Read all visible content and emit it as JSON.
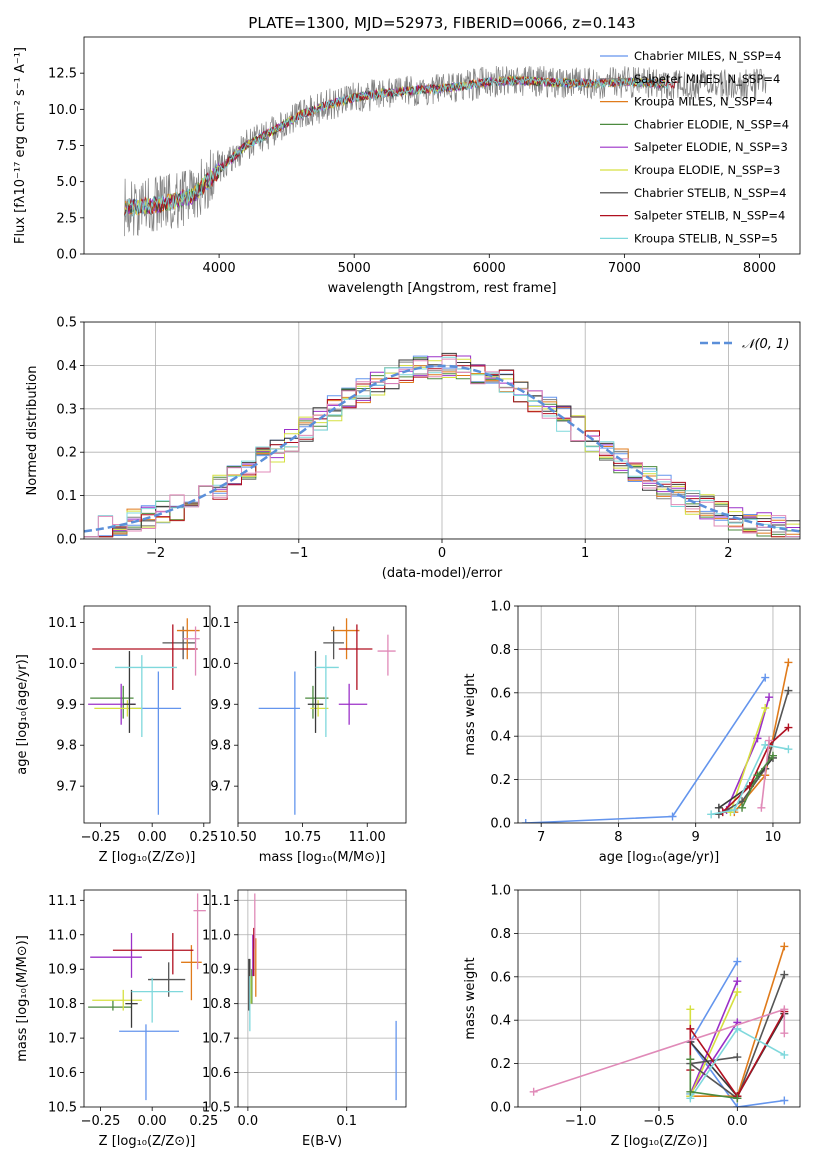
{
  "figure_title": "PLATE=1300, MJD=52973, FIBERID=0066, z=0.143",
  "chart_data": [
    {
      "id": "spectrum",
      "type": "line",
      "title": "PLATE=1300, MJD=52973, FIBERID=0066, z=0.143",
      "xlabel": "wavelength [Angstrom, rest frame]",
      "ylabel": "Flux [fλ10⁻¹⁷ erg cm⁻² s⁻¹ A⁻¹]",
      "xlim": [
        3000,
        8300
      ],
      "ylim": [
        0,
        15
      ],
      "xticks": [
        "4000",
        "5000",
        "6000",
        "7000",
        "8000"
      ],
      "yticks": [
        "0.0",
        "2.5",
        "5.0",
        "7.5",
        "10.0",
        "12.5"
      ],
      "grid": false,
      "legend_position": "upper-right",
      "data_series": {
        "name": "data",
        "color": "#808080"
      },
      "series": [
        {
          "name": "Chabrier MILES, N_SSP=4",
          "color": "#6495ed"
        },
        {
          "name": "Salpeter MILES, N_SSP=4",
          "color": "#808080"
        },
        {
          "name": "Kroupa MILES, N_SSP=4",
          "color": "#e07b1b"
        },
        {
          "name": "Chabrier ELODIE, N_SSP=4",
          "color": "#4c8a3f"
        },
        {
          "name": "Salpeter ELODIE, N_SSP=3",
          "color": "#9b30c8"
        },
        {
          "name": "Kroupa ELODIE, N_SSP=3",
          "color": "#d6e040"
        },
        {
          "name": "Chabrier STELIB, N_SSP=4",
          "color": "#3a3a3a"
        },
        {
          "name": "Salpeter STELIB, N_SSP=4",
          "color": "#b01020"
        },
        {
          "name": "Kroupa STELIB, N_SSP=5",
          "color": "#7fd8dc"
        }
      ],
      "continuum_x": [
        3300,
        3450,
        3600,
        3800,
        4000,
        4200,
        4400,
        4600,
        4800,
        5000,
        5200,
        5400,
        5600,
        5800,
        6000,
        6200,
        6400,
        6600,
        6800,
        7000,
        7200,
        7400
      ],
      "continuum_y": [
        3.2,
        3.3,
        3.5,
        4.0,
        5.8,
        7.5,
        8.5,
        9.6,
        10.3,
        10.8,
        11.1,
        11.3,
        11.4,
        11.6,
        11.9,
        12.0,
        11.9,
        11.8,
        11.8,
        11.9,
        11.8,
        11.7
      ],
      "data_xmax": 8050
    },
    {
      "id": "residual_hist",
      "type": "histogram",
      "xlabel": "(data-model)/error",
      "ylabel": "Normed distribution",
      "xlim": [
        -2.5,
        2.5
      ],
      "ylim": [
        0,
        0.5
      ],
      "xticks": [
        "−2",
        "−1",
        "0",
        "1",
        "2"
      ],
      "yticks": [
        "0.0",
        "0.1",
        "0.2",
        "0.3",
        "0.4",
        "0.5"
      ],
      "grid": true,
      "legend": "𝒩(0, 1)",
      "legend_position": "upper-right",
      "bin_width": 0.1,
      "reference_curve": {
        "type": "gaussian",
        "mean": 0,
        "sigma": 1,
        "color": "#5b8fd9"
      }
    },
    {
      "id": "age_vs_Z",
      "type": "errorbar",
      "xlabel": "Z [log₁₀(Z/Z⊙)]",
      "ylabel": "age [log₁₀(age/yr)]",
      "xlim": [
        -0.33,
        0.28
      ],
      "ylim": [
        9.61,
        10.14
      ],
      "xticks": [
        "−0.25",
        "0.00",
        "0.25"
      ],
      "yticks": [
        "9.7",
        "9.8",
        "9.9",
        "10.0",
        "10.1"
      ],
      "grid": false,
      "points": [
        {
          "x": 0.03,
          "y": 9.89,
          "xerr": [
            0.13,
            0.11
          ],
          "yerr": [
            0.26,
            0.09
          ],
          "color": "#6495ed"
        },
        {
          "x": 0.15,
          "y": 10.05,
          "xerr": [
            0.1,
            0.06
          ],
          "yerr": [
            0.04,
            0.04
          ],
          "color": "#555555"
        },
        {
          "x": 0.17,
          "y": 10.08,
          "xerr": [
            0.05,
            0.06
          ],
          "yerr": [
            0.07,
            0.03
          ],
          "color": "#e07b1b"
        },
        {
          "x": -0.14,
          "y": 9.915,
          "xerr": [
            0.16,
            0.05
          ],
          "yerr": [
            0.05,
            0.03
          ],
          "color": "#4c8a3f"
        },
        {
          "x": -0.15,
          "y": 9.9,
          "xerr": [
            0.16,
            0.07
          ],
          "yerr": [
            0.05,
            0.05
          ],
          "color": "#9b30c8"
        },
        {
          "x": -0.12,
          "y": 9.89,
          "xerr": [
            0.16,
            0.07
          ],
          "yerr": [
            0.02,
            0.02
          ],
          "color": "#d6e040"
        },
        {
          "x": -0.11,
          "y": 9.9,
          "xerr": [
            0.03,
            0.03
          ],
          "yerr": [
            0.07,
            0.13
          ],
          "color": "#3a3a3a"
        },
        {
          "x": 0.1,
          "y": 10.035,
          "xerr": [
            0.39,
            0.12
          ],
          "yerr": [
            0.1,
            0.06
          ],
          "color": "#b01020"
        },
        {
          "x": -0.05,
          "y": 9.99,
          "xerr": [
            0.13,
            0.17
          ],
          "yerr": [
            0.17,
            0.03
          ],
          "color": "#7fd8dc"
        },
        {
          "x": 0.21,
          "y": 10.06,
          "xerr": [
            0.06,
            0.02
          ],
          "yerr": [
            0.09,
            0.03
          ],
          "color": "#e08ab8"
        }
      ]
    },
    {
      "id": "age_vs_mass",
      "type": "errorbar",
      "xlabel": "mass [log₁₀(M/M⊙)]",
      "xlim": [
        10.5,
        11.15
      ],
      "ylim": [
        9.61,
        10.14
      ],
      "xticks": [
        "10.50",
        "10.75",
        "11.00"
      ],
      "yticks": [
        "9.7",
        "9.8",
        "9.9",
        "10.0",
        "10.1"
      ],
      "grid": false,
      "points": [
        {
          "x": 10.72,
          "y": 9.89,
          "xerr": [
            0.14,
            0.02
          ],
          "yerr": [
            0.26,
            0.09
          ],
          "color": "#6495ed"
        },
        {
          "x": 10.87,
          "y": 10.05,
          "xerr": [
            0.04,
            0.04
          ],
          "yerr": [
            0.04,
            0.04
          ],
          "color": "#555555"
        },
        {
          "x": 10.92,
          "y": 10.08,
          "xerr": [
            0.06,
            0.05
          ],
          "yerr": [
            0.07,
            0.03
          ],
          "color": "#e07b1b"
        },
        {
          "x": 10.79,
          "y": 9.915,
          "xerr": [
            0.03,
            0.06
          ],
          "yerr": [
            0.05,
            0.03
          ],
          "color": "#4c8a3f"
        },
        {
          "x": 10.93,
          "y": 9.9,
          "xerr": [
            0.04,
            0.07
          ],
          "yerr": [
            0.05,
            0.05
          ],
          "color": "#9b30c8"
        },
        {
          "x": 10.81,
          "y": 9.89,
          "xerr": [
            0.03,
            0.04
          ],
          "yerr": [
            0.02,
            0.02
          ],
          "color": "#d6e040"
        },
        {
          "x": 10.8,
          "y": 9.9,
          "xerr": [
            0.03,
            0.03
          ],
          "yerr": [
            0.07,
            0.13
          ],
          "color": "#3a3a3a"
        },
        {
          "x": 10.96,
          "y": 10.035,
          "xerr": [
            0.07,
            0.06
          ],
          "yerr": [
            0.1,
            0.06
          ],
          "color": "#b01020"
        },
        {
          "x": 10.84,
          "y": 9.99,
          "xerr": [
            0.04,
            0.05
          ],
          "yerr": [
            0.17,
            0.03
          ],
          "color": "#7fd8dc"
        },
        {
          "x": 11.08,
          "y": 10.03,
          "xerr": [
            0.04,
            0.03
          ],
          "yerr": [
            0.06,
            0.04
          ],
          "color": "#e08ab8"
        }
      ]
    },
    {
      "id": "weight_vs_age",
      "type": "line",
      "xlabel": "age [log₁₀(age/yr)]",
      "ylabel": "mass weight",
      "xlim": [
        6.7,
        10.35
      ],
      "ylim": [
        0,
        1.0
      ],
      "xticks": [
        "7",
        "8",
        "9",
        "10"
      ],
      "yticks": [
        "0.0",
        "0.2",
        "0.4",
        "0.6",
        "0.8",
        "1.0"
      ],
      "grid": true,
      "series": [
        {
          "color": "#6495ed",
          "x": [
            6.8,
            8.7,
            9.9
          ],
          "y": [
            0.0,
            0.03,
            0.67
          ]
        },
        {
          "color": "#e07b1b",
          "x": [
            9.5,
            9.9,
            10.2
          ],
          "y": [
            0.05,
            0.22,
            0.74
          ]
        },
        {
          "color": "#9b30c8",
          "x": [
            9.4,
            9.8,
            9.95
          ],
          "y": [
            0.06,
            0.39,
            0.58
          ]
        },
        {
          "color": "#d6e040",
          "x": [
            9.45,
            9.9
          ],
          "y": [
            0.05,
            0.53
          ]
        },
        {
          "color": "#555555",
          "x": [
            9.3,
            9.6,
            9.9,
            10.2
          ],
          "y": [
            0.04,
            0.1,
            0.25,
            0.61
          ]
        },
        {
          "color": "#3a3a3a",
          "x": [
            9.3,
            9.7,
            10.0
          ],
          "y": [
            0.07,
            0.17,
            0.3
          ]
        },
        {
          "color": "#b01020",
          "x": [
            9.35,
            9.7,
            9.95,
            10.2
          ],
          "y": [
            0.05,
            0.17,
            0.36,
            0.44
          ]
        },
        {
          "color": "#7fd8dc",
          "x": [
            9.2,
            9.5,
            9.9,
            10.2
          ],
          "y": [
            0.04,
            0.06,
            0.36,
            0.34
          ]
        },
        {
          "color": "#e08ab8",
          "x": [
            9.85,
            9.95
          ],
          "y": [
            0.07,
            0.38
          ]
        },
        {
          "color": "#4c8a3f",
          "x": [
            9.6,
            9.8,
            10.0
          ],
          "y": [
            0.07,
            0.22,
            0.31
          ]
        }
      ]
    },
    {
      "id": "mass_vs_Z",
      "type": "errorbar",
      "xlabel": "Z [log₁₀(Z/Z⊙)]",
      "ylabel": "mass [log₁₀(M/M⊙)]",
      "xlim": [
        -0.33,
        0.28
      ],
      "ylim": [
        10.5,
        11.13
      ],
      "xticks": [
        "−0.25",
        "0.00",
        "0.25"
      ],
      "yticks": [
        "10.5",
        "10.6",
        "10.7",
        "10.8",
        "10.9",
        "11.0",
        "11.1"
      ],
      "grid": false,
      "points": [
        {
          "x": -0.03,
          "y": 10.72,
          "xerr": [
            0.13,
            0.16
          ],
          "yerr": [
            0.2,
            0.02
          ],
          "color": "#6495ed"
        },
        {
          "x": 0.08,
          "y": 10.87,
          "xerr": [
            0.1,
            0.08
          ],
          "yerr": [
            0.05,
            0.05
          ],
          "color": "#555555"
        },
        {
          "x": 0.19,
          "y": 10.92,
          "xerr": [
            0.05,
            0.05
          ],
          "yerr": [
            0.11,
            0.05
          ],
          "color": "#e07b1b"
        },
        {
          "x": -0.19,
          "y": 10.79,
          "xerr": [
            0.12,
            0.09
          ],
          "yerr": [
            0.01,
            0.02
          ],
          "color": "#4c8a3f"
        },
        {
          "x": -0.1,
          "y": 10.935,
          "xerr": [
            0.2,
            0.05
          ],
          "yerr": [
            0.06,
            0.07
          ],
          "color": "#9b30c8"
        },
        {
          "x": -0.14,
          "y": 10.81,
          "xerr": [
            0.15,
            0.09
          ],
          "yerr": [
            0.03,
            0.03
          ],
          "color": "#d6e040"
        },
        {
          "x": -0.1,
          "y": 10.8,
          "xerr": [
            0.03,
            0.03
          ],
          "yerr": [
            0.07,
            0.04
          ],
          "color": "#3a3a3a"
        },
        {
          "x": 0.1,
          "y": 10.955,
          "xerr": [
            0.29,
            0.1
          ],
          "yerr": [
            0.07,
            0.05
          ],
          "color": "#b01020"
        },
        {
          "x": 0.0,
          "y": 10.835,
          "xerr": [
            0.1,
            0.15
          ],
          "yerr": [
            0.09,
            0.04
          ],
          "color": "#7fd8dc"
        },
        {
          "x": 0.22,
          "y": 11.07,
          "xerr": [
            0.02,
            0.04
          ],
          "yerr": [
            0.17,
            0.05
          ],
          "color": "#e08ab8"
        }
      ]
    },
    {
      "id": "mass_vs_EBV",
      "type": "errorbar",
      "xlabel": "E(B-V)",
      "xlim": [
        -0.01,
        0.16
      ],
      "ylim": [
        10.5,
        11.13
      ],
      "xticks": [
        "0.0",
        "0.1"
      ],
      "yticks": [
        "10.5",
        "10.6",
        "10.7",
        "10.8",
        "10.9",
        "11.0",
        "11.1"
      ],
      "grid": true,
      "points": [
        {
          "x": 0.15,
          "y": 10.7,
          "xerr": [
            0,
            0
          ],
          "yerr": [
            0.18,
            0.05
          ],
          "color": "#6495ed"
        },
        {
          "x": 0.002,
          "y": 10.87,
          "xerr": [
            0,
            0
          ],
          "yerr": [
            0.06,
            0.06
          ],
          "color": "#555555"
        },
        {
          "x": 0.008,
          "y": 10.92,
          "xerr": [
            0,
            0
          ],
          "yerr": [
            0.1,
            0.07
          ],
          "color": "#e07b1b"
        },
        {
          "x": 0.004,
          "y": 10.82,
          "xerr": [
            0,
            0
          ],
          "yerr": [
            0.02,
            0.08
          ],
          "color": "#4c8a3f"
        },
        {
          "x": 0.005,
          "y": 10.95,
          "xerr": [
            0,
            0
          ],
          "yerr": [
            0.07,
            0.05
          ],
          "color": "#9b30c8"
        },
        {
          "x": 0.003,
          "y": 10.84,
          "xerr": [
            0,
            0
          ],
          "yerr": [
            0.04,
            0.04
          ],
          "color": "#d6e040"
        },
        {
          "x": 0.001,
          "y": 10.85,
          "xerr": [
            0,
            0
          ],
          "yerr": [
            0.07,
            0.08
          ],
          "color": "#3a3a3a"
        },
        {
          "x": 0.006,
          "y": 10.96,
          "xerr": [
            0,
            0
          ],
          "yerr": [
            0.08,
            0.06
          ],
          "color": "#b01020"
        },
        {
          "x": 0.002,
          "y": 10.82,
          "xerr": [
            0,
            0
          ],
          "yerr": [
            0.1,
            0.06
          ],
          "color": "#7fd8dc"
        },
        {
          "x": 0.007,
          "y": 11.02,
          "xerr": [
            0,
            0
          ],
          "yerr": [
            0.06,
            0.1
          ],
          "color": "#e08ab8"
        }
      ]
    },
    {
      "id": "weight_vs_Z",
      "type": "line",
      "xlabel": "Z [log₁₀(Z/Z⊙)]",
      "ylabel": "mass weight",
      "xlim": [
        -1.4,
        0.4
      ],
      "ylim": [
        0,
        1.0
      ],
      "xticks": [
        "−1.0",
        "−0.5",
        "0.0"
      ],
      "yticks": [
        "0.0",
        "0.2",
        "0.4",
        "0.6",
        "0.8",
        "1.0"
      ],
      "grid": true,
      "series": [
        {
          "color": "#6495ed",
          "x": [
            0.3,
            0.0,
            -0.3,
            0.0
          ],
          "y": [
            0.03,
            0.0,
            0.3,
            0.67
          ]
        },
        {
          "color": "#e07b1b",
          "x": [
            0.3,
            0.0,
            -0.3
          ],
          "y": [
            0.74,
            0.05,
            0.05
          ]
        },
        {
          "color": "#9b30c8",
          "x": [
            0.0,
            -0.3,
            0.0
          ],
          "y": [
            0.58,
            0.06,
            0.39
          ]
        },
        {
          "color": "#d6e040",
          "x": [
            0.0,
            -0.3,
            -0.3
          ],
          "y": [
            0.53,
            0.05,
            0.45
          ]
        },
        {
          "color": "#555555",
          "x": [
            0.3,
            0.0,
            -0.3,
            0.0
          ],
          "y": [
            0.61,
            0.04,
            0.2,
            0.23
          ]
        },
        {
          "color": "#3a3a3a",
          "x": [
            0.3,
            0.0,
            -0.3
          ],
          "y": [
            0.43,
            0.05,
            0.3
          ]
        },
        {
          "color": "#b01020",
          "x": [
            0.3,
            0.0,
            -0.3,
            -0.3
          ],
          "y": [
            0.44,
            0.05,
            0.36,
            0.17
          ]
        },
        {
          "color": "#7fd8dc",
          "x": [
            0.3,
            0.0,
            -0.3,
            -0.3
          ],
          "y": [
            0.24,
            0.36,
            0.04,
            0.06
          ]
        },
        {
          "color": "#e08ab8",
          "x": [
            -1.3,
            0.3,
            0.3
          ],
          "y": [
            0.07,
            0.45,
            0.34
          ]
        },
        {
          "color": "#4c8a3f",
          "x": [
            0.0,
            -0.3,
            -0.3
          ],
          "y": [
            0.04,
            0.07,
            0.22
          ]
        }
      ]
    }
  ]
}
